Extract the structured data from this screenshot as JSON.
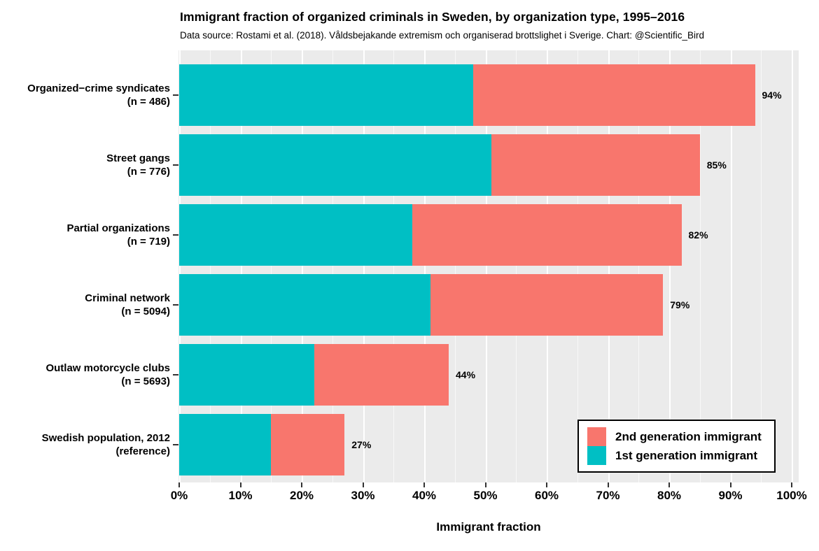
{
  "header": {
    "title": "Immigrant fraction of organized criminals in Sweden, by organization type, 1995–2016",
    "subtitle": "Data source: Rostami et al. (2018). Våldsbejakande extremism och organiserad brottslighet i Sverige. Chart: @Scientific_Bird"
  },
  "chart_data": {
    "type": "bar",
    "orientation": "horizontal",
    "stacked": true,
    "title": "Immigrant fraction of organized criminals in Sweden, by organization type, 1995–2016",
    "xlabel": "Immigrant fraction",
    "xlim": [
      0,
      100
    ],
    "x_ticks": [
      "0%",
      "10%",
      "20%",
      "30%",
      "40%",
      "50%",
      "60%",
      "70%",
      "80%",
      "90%",
      "100%"
    ],
    "grid": true,
    "plot_background": "#EBEBEB",
    "grid_color": "#FFFFFF",
    "categories": [
      {
        "label": "Organized−crime syndicates",
        "sublabel": "(n = 486)"
      },
      {
        "label": "Street gangs",
        "sublabel": "(n = 776)"
      },
      {
        "label": "Partial organizations",
        "sublabel": "(n = 719)"
      },
      {
        "label": "Criminal network",
        "sublabel": "(n = 5094)"
      },
      {
        "label": "Outlaw motorcycle clubs",
        "sublabel": "(n = 5693)"
      },
      {
        "label": "Swedish population, 2012",
        "sublabel": "(reference)"
      }
    ],
    "series": [
      {
        "name": "1st generation immigrant",
        "color": "#00BFC4",
        "values": [
          48,
          51,
          38,
          41,
          22,
          15
        ]
      },
      {
        "name": "2nd generation immigrant",
        "color": "#F8766D",
        "values": [
          46,
          34,
          44,
          38,
          22,
          12
        ]
      }
    ],
    "totals": [
      94,
      85,
      82,
      79,
      44,
      27
    ],
    "value_labels": [
      "94%",
      "85%",
      "82%",
      "79%",
      "44%",
      "27%"
    ],
    "legend": {
      "position": "bottom-right",
      "entries": [
        {
          "label": "2nd generation immigrant",
          "color": "#F8766D"
        },
        {
          "label": "1st generation immigrant",
          "color": "#00BFC4"
        }
      ]
    }
  }
}
